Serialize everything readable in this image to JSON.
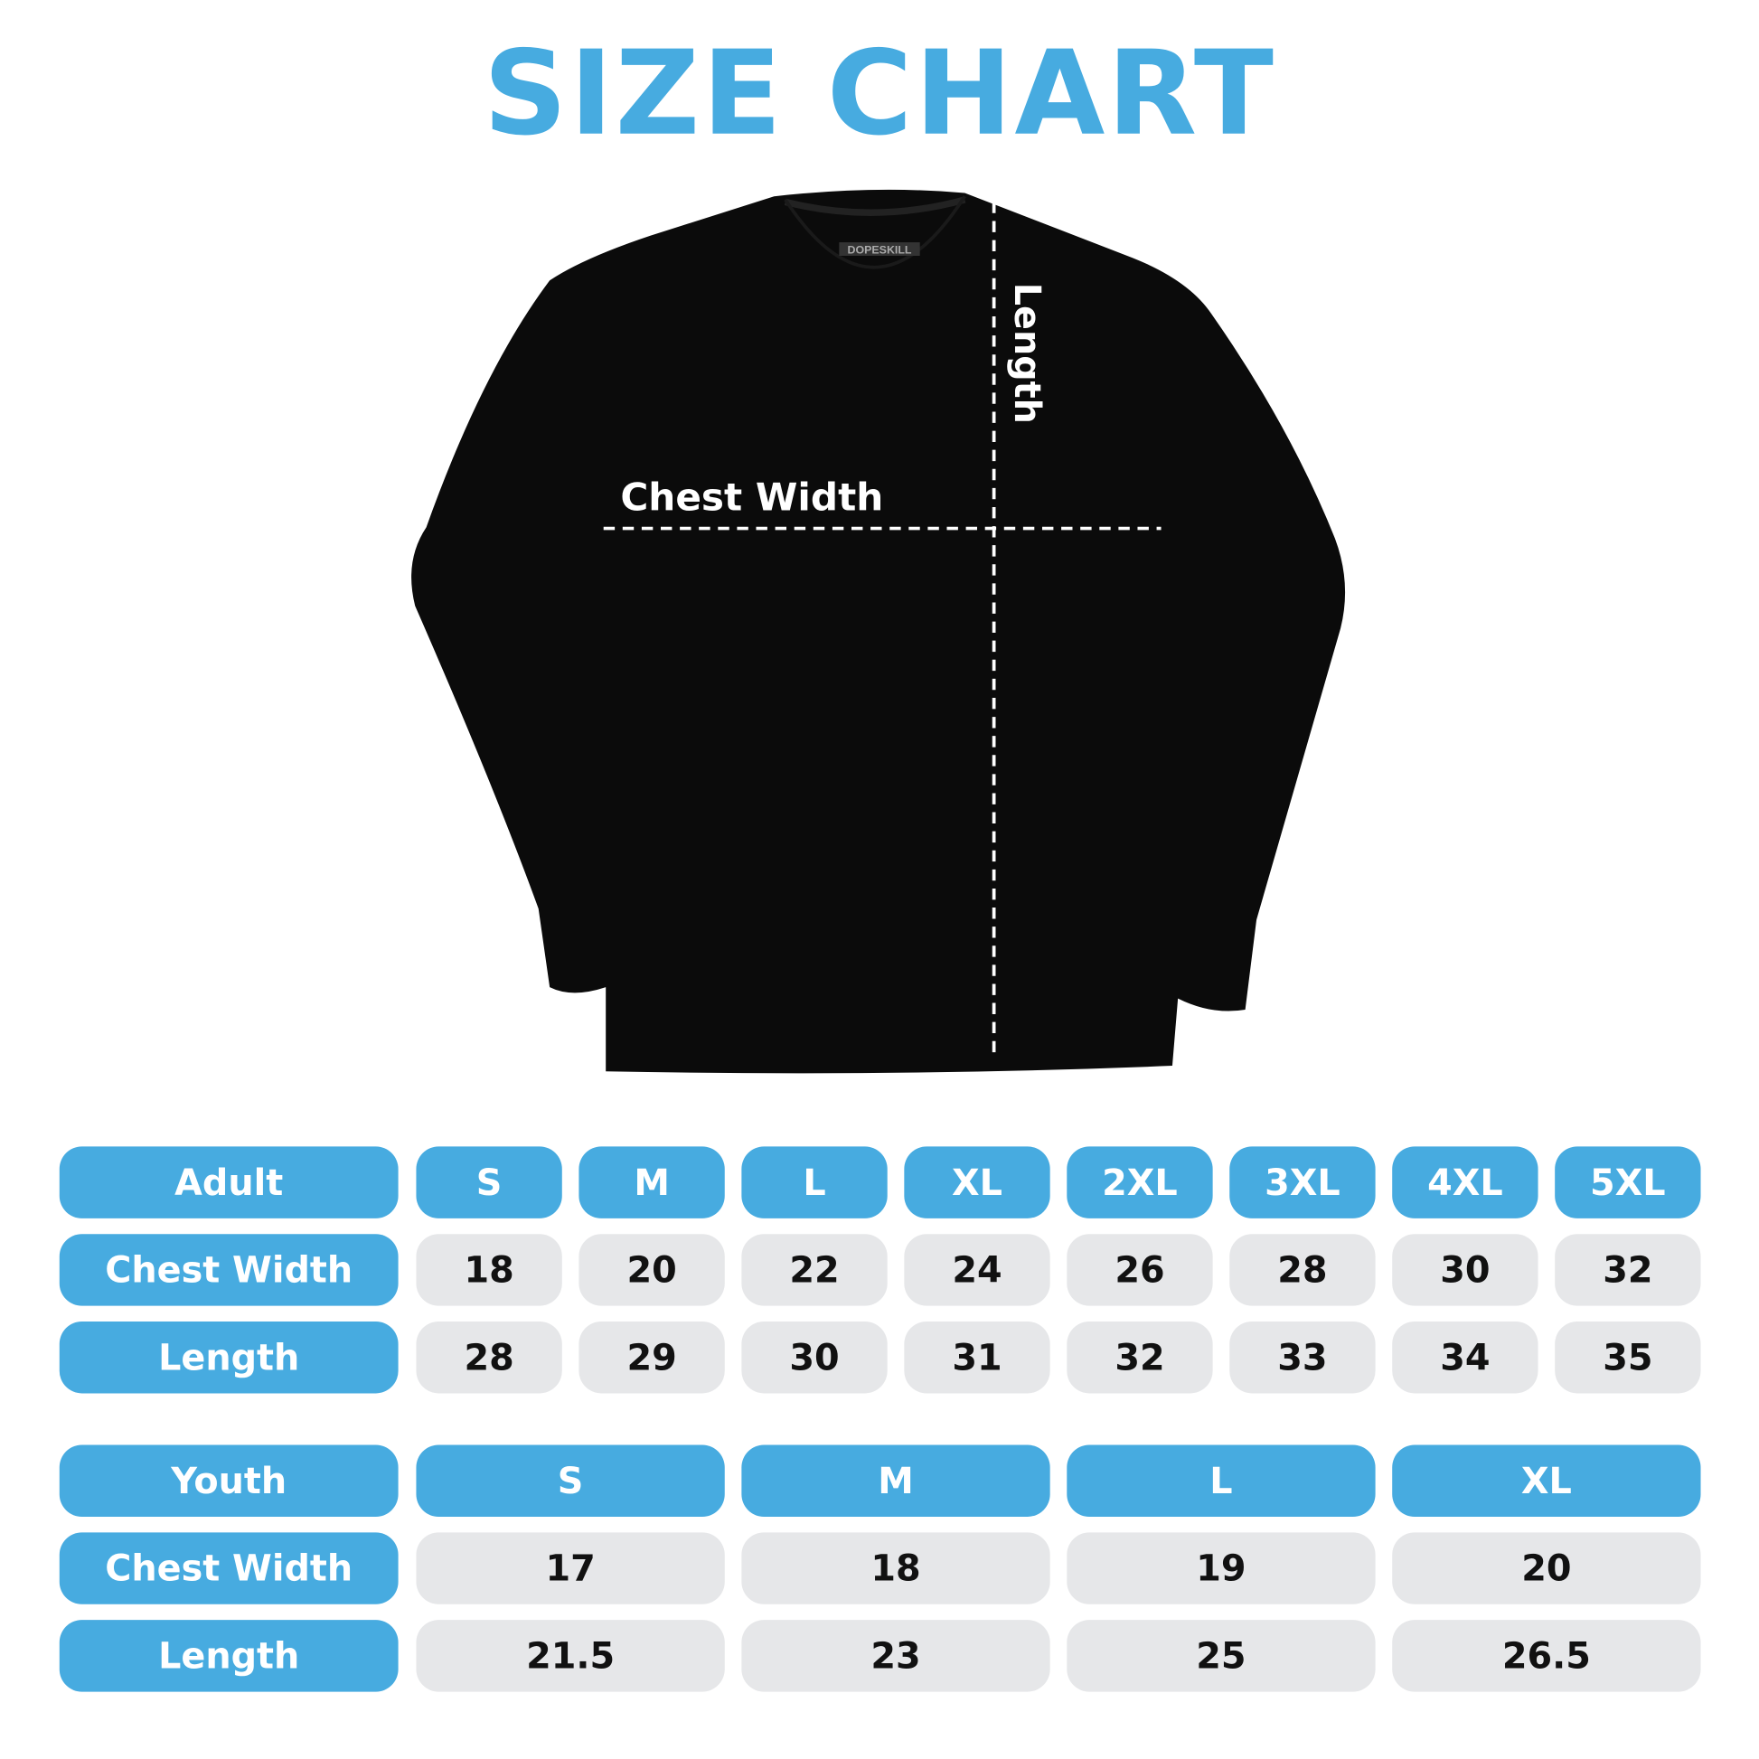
{
  "title": "SIZE CHART",
  "garment": {
    "brand_tag": "DOPESKILL",
    "chest_label": "Chest Width",
    "length_label": "Length",
    "garment_color": "#0b0b0b"
  },
  "colors": {
    "accent": "#47abe0",
    "cell_bg": "#e6e7e9"
  },
  "adult": {
    "header": "Adult",
    "sizes": [
      "S",
      "M",
      "L",
      "XL",
      "2XL",
      "3XL",
      "4XL",
      "5XL"
    ],
    "rows": [
      {
        "label": "Chest Width",
        "values": [
          "18",
          "20",
          "22",
          "24",
          "26",
          "28",
          "30",
          "32"
        ]
      },
      {
        "label": "Length",
        "values": [
          "28",
          "29",
          "30",
          "31",
          "32",
          "33",
          "34",
          "35"
        ]
      }
    ]
  },
  "youth": {
    "header": "Youth",
    "sizes": [
      "S",
      "M",
      "L",
      "XL"
    ],
    "rows": [
      {
        "label": "Chest Width",
        "values": [
          "17",
          "18",
          "19",
          "20"
        ]
      },
      {
        "label": "Length",
        "values": [
          "21.5",
          "23",
          "25",
          "26.5"
        ]
      }
    ]
  }
}
